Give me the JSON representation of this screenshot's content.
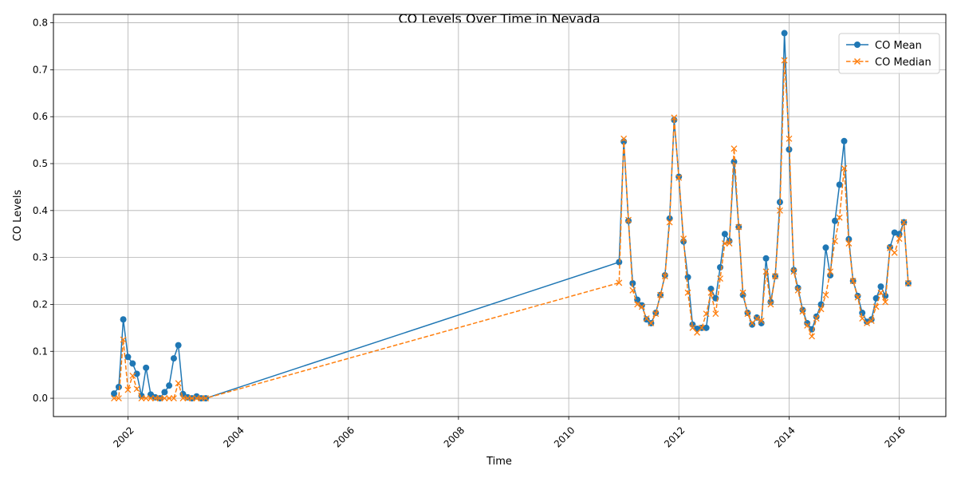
{
  "chart_data": {
    "type": "line",
    "title": "CO Levels Over Time in Nevada",
    "xlabel": "Time",
    "ylabel": "CO Levels",
    "xlim": [
      "2000-08-25",
      "2016-11-05"
    ],
    "ylim": [
      -0.039,
      0.818
    ],
    "x_ticks": [
      {
        "date": "2002-01-01",
        "label": "2002"
      },
      {
        "date": "2004-01-01",
        "label": "2004"
      },
      {
        "date": "2006-01-01",
        "label": "2006"
      },
      {
        "date": "2008-01-01",
        "label": "2008"
      },
      {
        "date": "2010-01-01",
        "label": "2010"
      },
      {
        "date": "2012-01-01",
        "label": "2012"
      },
      {
        "date": "2014-01-01",
        "label": "2014"
      },
      {
        "date": "2016-01-01",
        "label": "2016"
      }
    ],
    "y_ticks": [
      {
        "value": 0.0,
        "label": "0.0"
      },
      {
        "value": 0.1,
        "label": "0.1"
      },
      {
        "value": 0.2,
        "label": "0.2"
      },
      {
        "value": 0.3,
        "label": "0.3"
      },
      {
        "value": 0.4,
        "label": "0.4"
      },
      {
        "value": 0.5,
        "label": "0.5"
      },
      {
        "value": 0.6,
        "label": "0.6"
      },
      {
        "value": 0.7,
        "label": "0.7"
      },
      {
        "value": 0.8,
        "label": "0.8"
      }
    ],
    "grid": true,
    "legend_position": "top-right",
    "x": [
      "2001-10-01",
      "2001-11-01",
      "2001-12-01",
      "2002-01-01",
      "2002-02-01",
      "2002-03-01",
      "2002-04-01",
      "2002-05-01",
      "2002-06-01",
      "2002-07-01",
      "2002-08-01",
      "2002-09-01",
      "2002-10-01",
      "2002-11-01",
      "2002-12-01",
      "2003-01-01",
      "2003-02-01",
      "2003-03-01",
      "2003-04-01",
      "2003-05-01",
      "2003-06-01",
      "2010-12-01",
      "2011-01-01",
      "2011-02-01",
      "2011-03-01",
      "2011-04-01",
      "2011-05-01",
      "2011-06-01",
      "2011-07-01",
      "2011-08-01",
      "2011-09-01",
      "2011-10-01",
      "2011-11-01",
      "2011-12-01",
      "2012-01-01",
      "2012-02-01",
      "2012-03-01",
      "2012-04-01",
      "2012-05-01",
      "2012-06-01",
      "2012-07-01",
      "2012-08-01",
      "2012-09-01",
      "2012-10-01",
      "2012-11-01",
      "2012-12-01",
      "2013-01-01",
      "2013-02-01",
      "2013-03-01",
      "2013-04-01",
      "2013-05-01",
      "2013-06-01",
      "2013-07-01",
      "2013-08-01",
      "2013-09-01",
      "2013-10-01",
      "2013-11-01",
      "2013-12-01",
      "2014-01-01",
      "2014-02-01",
      "2014-03-01",
      "2014-04-01",
      "2014-05-01",
      "2014-06-01",
      "2014-07-01",
      "2014-08-01",
      "2014-09-01",
      "2014-10-01",
      "2014-11-01",
      "2014-12-01",
      "2015-01-01",
      "2015-02-01",
      "2015-03-01",
      "2015-04-01",
      "2015-05-01",
      "2015-06-01",
      "2015-07-01",
      "2015-08-01",
      "2015-09-01",
      "2015-10-01",
      "2015-11-01",
      "2015-12-01",
      "2016-01-01",
      "2016-02-01",
      "2016-03-01"
    ],
    "series": [
      {
        "name": "CO Mean",
        "color": "#1f77b4",
        "line_style": "solid",
        "marker": "circle",
        "values": [
          0.01,
          0.024,
          0.168,
          0.088,
          0.074,
          0.052,
          0.005,
          0.065,
          0.008,
          0.002,
          0.0,
          0.013,
          0.027,
          0.085,
          0.113,
          0.009,
          0.002,
          0.0,
          0.004,
          0.0,
          0.0,
          0.29,
          0.547,
          0.378,
          0.245,
          0.21,
          0.198,
          0.168,
          0.16,
          0.182,
          0.22,
          0.262,
          0.383,
          0.593,
          0.472,
          0.334,
          0.258,
          0.157,
          0.148,
          0.15,
          0.15,
          0.233,
          0.213,
          0.279,
          0.35,
          0.335,
          0.504,
          0.365,
          0.22,
          0.182,
          0.157,
          0.172,
          0.16,
          0.298,
          0.205,
          0.26,
          0.418,
          0.778,
          0.53,
          0.273,
          0.235,
          0.188,
          0.16,
          0.147,
          0.174,
          0.2,
          0.321,
          0.262,
          0.378,
          0.455,
          0.548,
          0.339,
          0.25,
          0.218,
          0.182,
          0.163,
          0.168,
          0.213,
          0.238,
          0.218,
          0.322,
          0.353,
          0.35,
          0.375,
          0.245
        ]
      },
      {
        "name": "CO Median",
        "color": "#ff7f0e",
        "line_style": "dashed",
        "marker": "x",
        "values": [
          0.0,
          0.0,
          0.125,
          0.018,
          0.048,
          0.02,
          0.0,
          0.0,
          0.0,
          0.0,
          0.0,
          0.0,
          0.0,
          0.0,
          0.032,
          0.0,
          0.0,
          0.0,
          0.0,
          0.0,
          0.0,
          0.246,
          0.553,
          0.38,
          0.23,
          0.2,
          0.195,
          0.17,
          0.16,
          0.18,
          0.22,
          0.26,
          0.375,
          0.598,
          0.47,
          0.34,
          0.225,
          0.15,
          0.14,
          0.15,
          0.18,
          0.225,
          0.18,
          0.255,
          0.33,
          0.33,
          0.532,
          0.365,
          0.225,
          0.18,
          0.16,
          0.17,
          0.165,
          0.27,
          0.2,
          0.26,
          0.4,
          0.72,
          0.553,
          0.27,
          0.23,
          0.185,
          0.155,
          0.132,
          0.17,
          0.19,
          0.22,
          0.27,
          0.335,
          0.385,
          0.49,
          0.33,
          0.25,
          0.215,
          0.17,
          0.16,
          0.165,
          0.195,
          0.225,
          0.205,
          0.32,
          0.31,
          0.34,
          0.375,
          0.245
        ]
      }
    ]
  }
}
